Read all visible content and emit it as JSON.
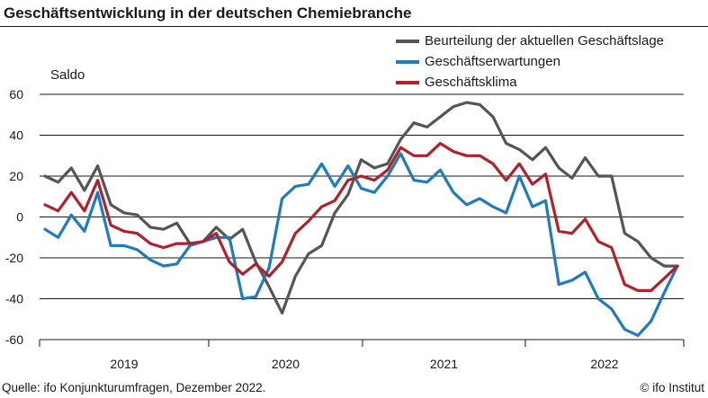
{
  "title": "Geschäftsentwicklung in der deutschen Chemiebranche",
  "source": "Quelle: ifo Konjunkturumfragen, Dezember 2022.",
  "credit": "© ifo Institut",
  "colors": {
    "lage": "#555555",
    "erwartungen": "#1f7bbf",
    "klima": "#b1212a",
    "grid": "#1a1a1a"
  },
  "chart_data": {
    "type": "line",
    "title": "Geschäftsentwicklung in der deutschen Chemiebranche",
    "xlabel": "",
    "ylabel": "Saldo",
    "ylim": [
      -60,
      60
    ],
    "y_ticks": [
      60,
      40,
      20,
      0,
      -20,
      -40,
      -60
    ],
    "x_ticks": [
      "2019",
      "2020",
      "2021",
      "2022"
    ],
    "x_start": "2019-01",
    "x_end": "2022-12",
    "grid": true,
    "legend_position": "top-right",
    "series": [
      {
        "name": "Beurteilung der aktuellen Geschäftslage",
        "color": "#555555",
        "values": [
          20,
          17,
          24,
          13,
          25,
          6,
          2,
          1,
          -5,
          -6,
          -3,
          -13,
          -12,
          -5,
          -11,
          -6,
          -22,
          -34,
          -47,
          -29,
          -18,
          -14,
          2,
          11,
          28,
          24,
          26,
          38,
          46,
          44,
          49,
          54,
          56,
          55,
          49,
          36,
          33,
          28,
          34,
          24,
          19,
          29,
          20,
          20,
          -8,
          -12,
          -20,
          -24,
          -24
        ]
      },
      {
        "name": "Geschäftserwartungen",
        "color": "#1f7bbf",
        "values": [
          -6,
          -10,
          1,
          -7,
          12,
          -14,
          -14,
          -16,
          -21,
          -24,
          -23,
          -14,
          -12,
          -10,
          -10,
          -40,
          -39,
          -25,
          9,
          15,
          16,
          26,
          15,
          25,
          14,
          12,
          20,
          31,
          18,
          17,
          23,
          12,
          6,
          9,
          5,
          2,
          20,
          5,
          8,
          -33,
          -31,
          -27,
          -40,
          -45,
          -55,
          -58,
          -51,
          -37,
          -24
        ]
      },
      {
        "name": "Geschäftsklima",
        "color": "#b1212a",
        "values": [
          6,
          3,
          12,
          3,
          18,
          -4,
          -7,
          -8,
          -13,
          -15,
          -13,
          -13,
          -12,
          -8,
          -22,
          -28,
          -23,
          -29,
          -22,
          -8,
          -2,
          5,
          8,
          18,
          20,
          18,
          23,
          34,
          30,
          30,
          36,
          32,
          30,
          30,
          26,
          18,
          26,
          16,
          21,
          -7,
          -8,
          -1,
          -12,
          -15,
          -33,
          -36,
          -36,
          -30,
          -24
        ]
      }
    ]
  }
}
